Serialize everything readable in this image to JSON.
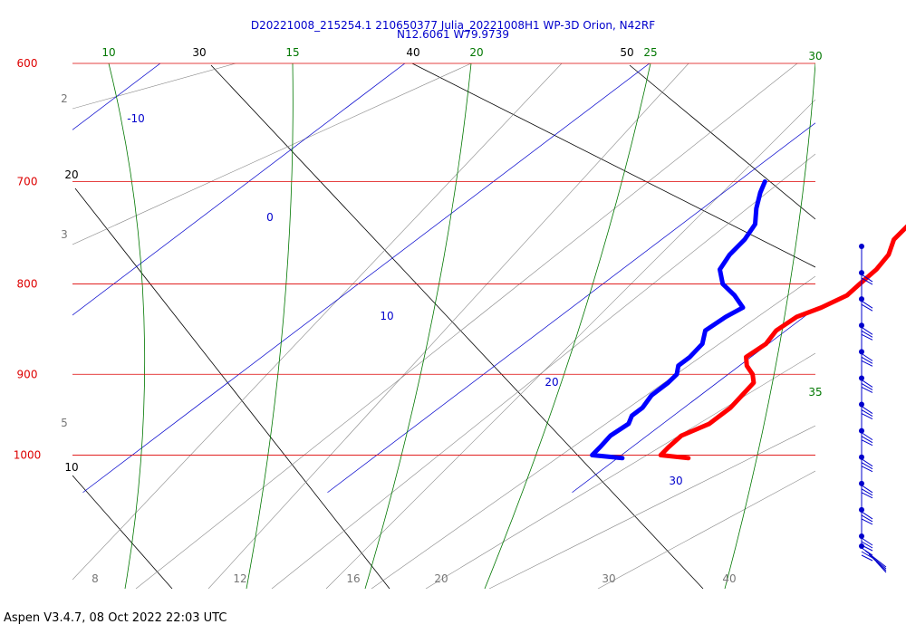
{
  "chart_data": {
    "type": "line",
    "title": "D20221008_215254.1 210650377 Julia_20221008H1 WP-3D Orion, N42RF",
    "subtitle": "N12.6061 W79.9739",
    "y_pressure_ticks": [
      "600",
      "700",
      "800",
      "900",
      "1000"
    ],
    "y_pressure_values": [
      600,
      700,
      800,
      900,
      1000
    ],
    "x_temp_labels": [
      {
        "text": "10",
        "kind": "top-black"
      },
      {
        "text": "30",
        "kind": "top-black"
      },
      {
        "text": "40",
        "kind": "top-black"
      },
      {
        "text": "50",
        "kind": "top-black"
      },
      {
        "text": "10",
        "kind": "top-green"
      },
      {
        "text": "15",
        "kind": "top-green"
      },
      {
        "text": "20",
        "kind": "top-green"
      },
      {
        "text": "25",
        "kind": "top-green"
      },
      {
        "text": "30",
        "kind": "top-green"
      },
      {
        "text": "35",
        "kind": "top-green"
      }
    ],
    "isotherm_labels": [
      "-10",
      "0",
      "10",
      "20",
      "30"
    ],
    "mixing_ratio_labels": [
      "2",
      "3",
      "5",
      "8",
      "12",
      "16",
      "20",
      "30",
      "40"
    ],
    "dry_adiabat_left_labels": [
      "20",
      "10"
    ],
    "series": [
      {
        "name": "Temperature",
        "color": "#ff0000",
        "pressure": [
          1004,
          1000,
          990,
          975,
          960,
          950,
          940,
          925,
          910,
          900,
          890,
          880,
          865,
          850,
          835,
          825,
          812,
          800,
          785,
          770,
          755,
          740,
          725,
          710,
          700
        ],
        "values": [
          22.9,
          21.6,
          21.5,
          21.4,
          21.9,
          21.9,
          21.9,
          21.7,
          21.5,
          21.0,
          20.3,
          19.8,
          19.9,
          19.6,
          19.7,
          20.2,
          20.6,
          20.5,
          20.4,
          20.1,
          19.5,
          19.3,
          19.3,
          19.1,
          19.0
        ]
      },
      {
        "name": "Dew point",
        "color": "#0000ff",
        "pressure": [
          1004,
          1000,
          990,
          975,
          960,
          950,
          940,
          925,
          910,
          900,
          890,
          880,
          865,
          850,
          835,
          825,
          812,
          800,
          785,
          770,
          755,
          740,
          725,
          710,
          700
        ],
        "values": [
          20.2,
          18.8,
          18.7,
          18.5,
          18.6,
          18.3,
          18.3,
          18.0,
          18.0,
          17.9,
          17.5,
          17.5,
          17.3,
          16.7,
          16.8,
          17.0,
          16.0,
          14.9,
          14.0,
          13.6,
          13.4,
          13.0,
          12.2,
          11.5,
          11.1
        ]
      }
    ],
    "wind_barbs": {
      "count": 13,
      "color": "#0000cc"
    }
  },
  "footer": "Aspen V3.4.7, 08 Oct 2022  22:03 UTC"
}
